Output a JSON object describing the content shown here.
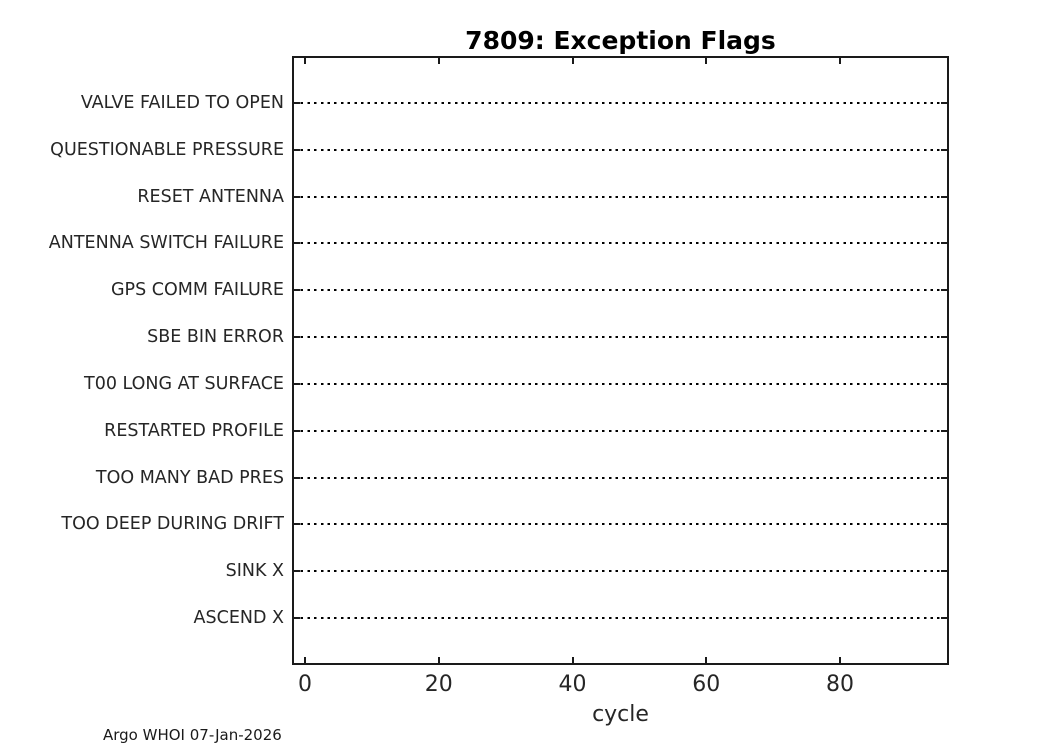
{
  "figure": {
    "title": "7809: Exception Flags",
    "footer": "Argo WHOI 07-Jan-2026"
  },
  "chart_data": {
    "type": "scatter",
    "title": "7809: Exception Flags",
    "xlabel": "cycle",
    "ylabel": "",
    "categories_top_to_bottom": [
      "VALVE FAILED TO OPEN",
      "QUESTIONABLE PRESSURE",
      "RESET ANTENNA",
      "ANTENNA SWITCH FAILURE",
      "GPS COMM FAILURE",
      "SBE BIN ERROR",
      "T00 LONG AT SURFACE",
      "RESTARTED PROFILE",
      "TOO MANY BAD PRES",
      "TOO DEEP DURING DRIFT",
      "SINK X",
      "ASCEND X"
    ],
    "x_ticks": [
      0,
      20,
      40,
      60,
      80
    ],
    "xlim": [
      -2,
      97
    ],
    "series": [],
    "points_plotted": "none - all exception flag rows are empty",
    "grid": "one horizontal black dotted reference line per category row",
    "legend": "none",
    "annotations": [
      "Argo WHOI 07-Jan-2026"
    ],
    "colors": {
      "axis": "#1a1a1a",
      "gridline": "#000000",
      "text": "#262626",
      "title": "#000000",
      "background": "#ffffff"
    }
  }
}
